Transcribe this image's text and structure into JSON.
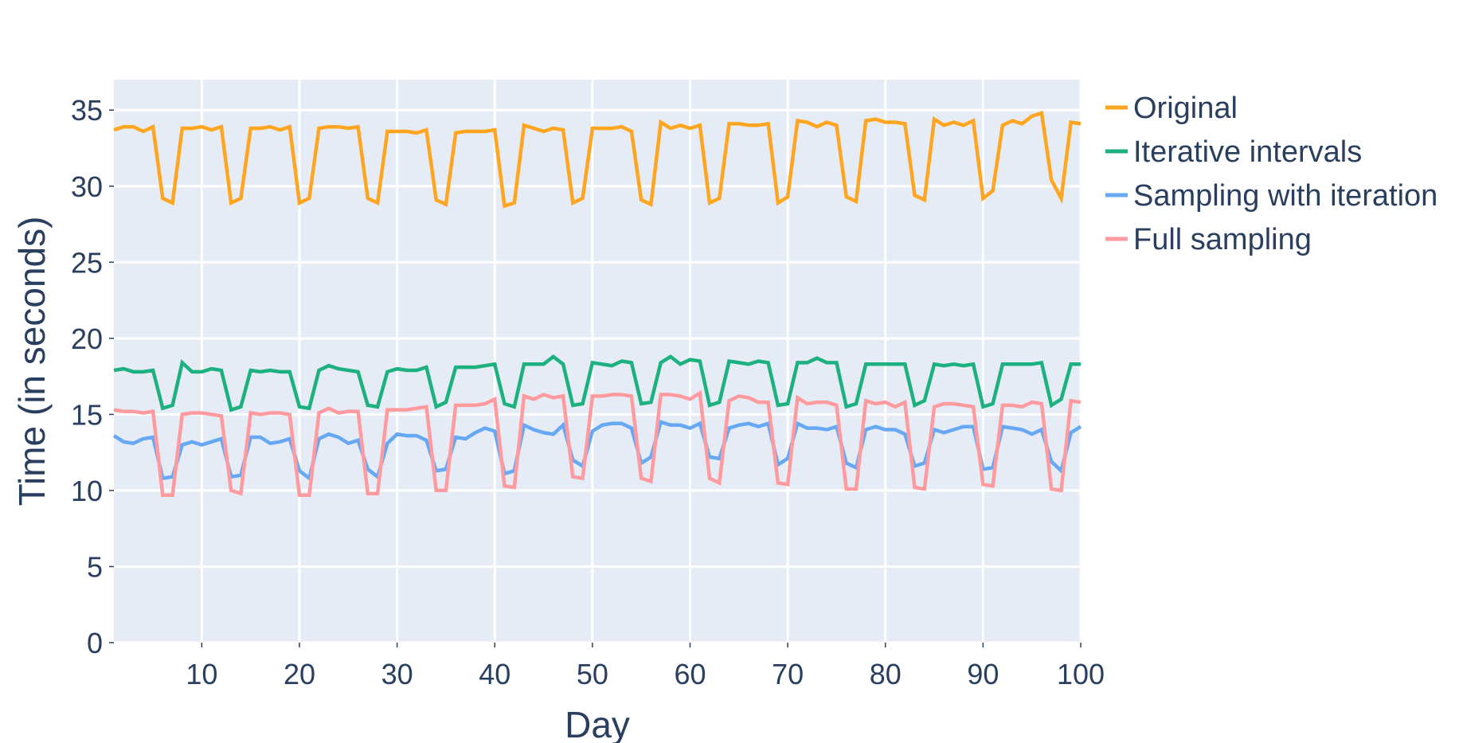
{
  "colors": {
    "plot_bg": "#e5ecf6",
    "grid": "#ffffff",
    "text": "#2a3f5f"
  },
  "chart_data": {
    "type": "line",
    "title": "",
    "xlabel": "Day",
    "ylabel": "Time (in seconds)",
    "xlim": [
      1,
      100
    ],
    "ylim": [
      0,
      37
    ],
    "xticks": [
      10,
      20,
      30,
      40,
      50,
      60,
      70,
      80,
      90,
      100
    ],
    "yticks": [
      0,
      5,
      10,
      15,
      20,
      25,
      30,
      35
    ],
    "grid": true,
    "legend_position": "top-right outside",
    "x": [
      1,
      2,
      3,
      4,
      5,
      6,
      7,
      8,
      9,
      10,
      11,
      12,
      13,
      14,
      15,
      16,
      17,
      18,
      19,
      20,
      21,
      22,
      23,
      24,
      25,
      26,
      27,
      28,
      29,
      30,
      31,
      32,
      33,
      34,
      35,
      36,
      37,
      38,
      39,
      40,
      41,
      42,
      43,
      44,
      45,
      46,
      47,
      48,
      49,
      50,
      51,
      52,
      53,
      54,
      55,
      56,
      57,
      58,
      59,
      60,
      61,
      62,
      63,
      64,
      65,
      66,
      67,
      68,
      69,
      70,
      71,
      72,
      73,
      74,
      75,
      76,
      77,
      78,
      79,
      80,
      81,
      82,
      83,
      84,
      85,
      86,
      87,
      88,
      89,
      90,
      91,
      92,
      93,
      94,
      95,
      96,
      97,
      98,
      99,
      100
    ],
    "series": [
      {
        "name": "Original",
        "color": "#ffa51f",
        "values": [
          33.7,
          33.9,
          33.9,
          33.6,
          33.9,
          29.2,
          28.9,
          33.8,
          33.8,
          33.9,
          33.7,
          33.9,
          28.9,
          29.2,
          33.8,
          33.8,
          33.9,
          33.7,
          33.9,
          28.9,
          29.2,
          33.8,
          33.9,
          33.9,
          33.8,
          33.9,
          29.2,
          28.9,
          33.6,
          33.6,
          33.6,
          33.5,
          33.7,
          29.1,
          28.8,
          33.5,
          33.6,
          33.6,
          33.6,
          33.7,
          28.7,
          28.9,
          34.0,
          33.8,
          33.6,
          33.8,
          33.7,
          28.9,
          29.2,
          33.8,
          33.8,
          33.8,
          33.9,
          33.6,
          29.1,
          28.8,
          34.2,
          33.8,
          34.0,
          33.8,
          34.0,
          28.9,
          29.2,
          34.1,
          34.1,
          34.0,
          34.0,
          34.1,
          28.9,
          29.3,
          34.3,
          34.2,
          33.9,
          34.2,
          34.0,
          29.3,
          29.0,
          34.3,
          34.4,
          34.2,
          34.2,
          34.1,
          29.4,
          29.1,
          34.4,
          34.0,
          34.2,
          34.0,
          34.3,
          29.2,
          29.7,
          34.0,
          34.3,
          34.1,
          34.6,
          34.8,
          30.4,
          29.2,
          34.2,
          34.1
        ]
      },
      {
        "name": "Iterative intervals",
        "color": "#1cb17f",
        "values": [
          17.9,
          18.0,
          17.8,
          17.8,
          17.9,
          15.4,
          15.6,
          18.4,
          17.8,
          17.8,
          18.0,
          17.9,
          15.3,
          15.5,
          17.9,
          17.8,
          17.9,
          17.8,
          17.8,
          15.5,
          15.4,
          17.9,
          18.2,
          18.0,
          17.9,
          17.8,
          15.6,
          15.5,
          17.8,
          18.0,
          17.9,
          17.9,
          18.1,
          15.5,
          15.8,
          18.1,
          18.1,
          18.1,
          18.2,
          18.3,
          15.7,
          15.5,
          18.3,
          18.3,
          18.3,
          18.8,
          18.3,
          15.6,
          15.7,
          18.4,
          18.3,
          18.2,
          18.5,
          18.4,
          15.7,
          15.8,
          18.4,
          18.8,
          18.3,
          18.6,
          18.5,
          15.6,
          15.8,
          18.5,
          18.4,
          18.3,
          18.5,
          18.4,
          15.6,
          15.7,
          18.4,
          18.4,
          18.7,
          18.4,
          18.4,
          15.5,
          15.7,
          18.3,
          18.3,
          18.3,
          18.3,
          18.3,
          15.6,
          15.9,
          18.3,
          18.2,
          18.3,
          18.2,
          18.3,
          15.5,
          15.7,
          18.3,
          18.3,
          18.3,
          18.3,
          18.4,
          15.6,
          16.0,
          18.3,
          18.3
        ]
      },
      {
        "name": "Sampling with iteration",
        "color": "#66a8f4",
        "values": [
          13.6,
          13.2,
          13.1,
          13.4,
          13.5,
          10.8,
          10.9,
          13.0,
          13.2,
          13.0,
          13.2,
          13.4,
          10.9,
          11.0,
          13.5,
          13.5,
          13.1,
          13.2,
          13.4,
          11.3,
          10.8,
          13.4,
          13.7,
          13.5,
          13.1,
          13.3,
          11.4,
          10.9,
          13.1,
          13.7,
          13.6,
          13.6,
          13.3,
          11.3,
          11.4,
          13.5,
          13.4,
          13.8,
          14.1,
          13.9,
          11.1,
          11.3,
          14.3,
          14.0,
          13.8,
          13.7,
          14.3,
          12.0,
          11.6,
          13.9,
          14.3,
          14.4,
          14.4,
          14.1,
          11.8,
          12.2,
          14.5,
          14.3,
          14.3,
          14.1,
          14.4,
          12.2,
          12.1,
          14.1,
          14.3,
          14.4,
          14.2,
          14.4,
          11.7,
          12.1,
          14.4,
          14.1,
          14.1,
          14.0,
          14.2,
          11.8,
          11.5,
          14.0,
          14.2,
          14.0,
          14.0,
          13.7,
          11.6,
          11.8,
          14.0,
          13.8,
          14.0,
          14.2,
          14.2,
          11.4,
          11.5,
          14.2,
          14.1,
          14.0,
          13.7,
          14.0,
          11.9,
          11.3,
          13.8,
          14.2
        ]
      },
      {
        "name": "Full sampling",
        "color": "#ff9a9f",
        "values": [
          15.3,
          15.2,
          15.2,
          15.1,
          15.2,
          9.7,
          9.7,
          15.0,
          15.1,
          15.1,
          15.0,
          14.9,
          10.0,
          9.8,
          15.1,
          15.0,
          15.1,
          15.1,
          15.0,
          9.7,
          9.7,
          15.1,
          15.4,
          15.1,
          15.2,
          15.2,
          9.8,
          9.8,
          15.3,
          15.3,
          15.3,
          15.4,
          15.5,
          10.0,
          10.0,
          15.6,
          15.6,
          15.6,
          15.7,
          16.0,
          10.3,
          10.2,
          16.2,
          16.0,
          16.3,
          16.1,
          16.2,
          10.9,
          10.8,
          16.2,
          16.2,
          16.3,
          16.3,
          16.2,
          10.8,
          10.6,
          16.3,
          16.3,
          16.2,
          16.0,
          16.4,
          10.8,
          10.5,
          15.9,
          16.2,
          16.1,
          15.8,
          15.8,
          10.5,
          10.4,
          16.1,
          15.7,
          15.8,
          15.8,
          15.6,
          10.1,
          10.1,
          15.9,
          15.7,
          15.8,
          15.5,
          15.8,
          10.2,
          10.1,
          15.5,
          15.7,
          15.7,
          15.6,
          15.5,
          10.4,
          10.3,
          15.6,
          15.6,
          15.5,
          15.8,
          15.7,
          10.1,
          10.0,
          15.9,
          15.8
        ]
      }
    ]
  }
}
